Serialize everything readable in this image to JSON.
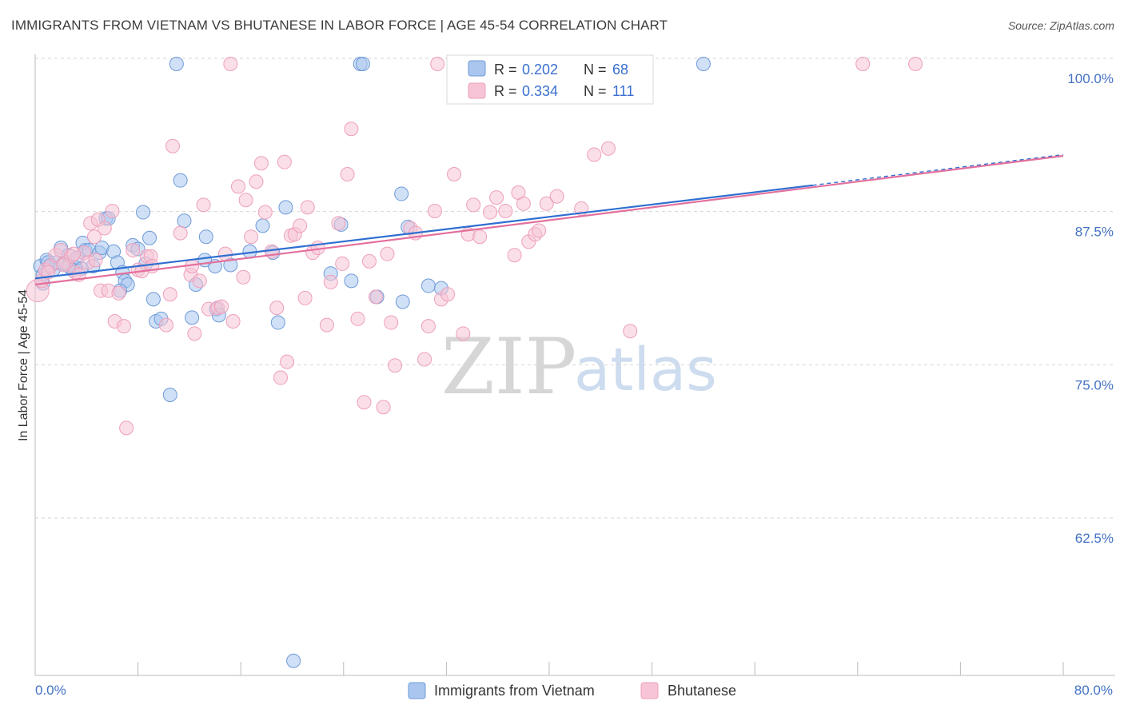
{
  "title": "IMMIGRANTS FROM VIETNAM VS BHUTANESE IN LABOR FORCE | AGE 45-54 CORRELATION CHART",
  "source": "Source: ZipAtlas.com",
  "watermark": {
    "zip": "ZIP",
    "atlas": "atlas"
  },
  "chart_data": {
    "type": "scatter",
    "title": "IMMIGRANTS FROM VIETNAM VS BHUTANESE IN LABOR FORCE | AGE 45-54 CORRELATION CHART",
    "xlabel": "",
    "ylabel": "In Labor Force | Age 45-54",
    "xlim": [
      0,
      80
    ],
    "ylim": [
      50,
      101
    ],
    "x_tick_labels": [
      "0.0%",
      "80.0%"
    ],
    "y_ticks": [
      62.5,
      75.0,
      87.5,
      100.0
    ],
    "y_tick_labels": [
      "62.5%",
      "75.0%",
      "87.5%",
      "100.0%"
    ],
    "grid": true,
    "legend_top": {
      "rows": [
        {
          "r_label": "R = ",
          "r_value": "0.202",
          "n_label": "N = ",
          "n_value": "68"
        },
        {
          "r_label": "R = ",
          "r_value": "0.334",
          "n_label": "N = ",
          "n_value": "111"
        }
      ]
    },
    "series": [
      {
        "name": "Immigrants from Vietnam",
        "color": "#6f9bd8",
        "fill": "#aac6ee",
        "line_color": "#2f6fd0",
        "trend": {
          "x0": 0,
          "y0": 82.5,
          "x1": 60.5,
          "y1": 90.1,
          "dash_x1": 80,
          "dash_y1": 92.6
        },
        "points": [
          [
            0.4,
            83.5
          ],
          [
            0.6,
            82.8
          ],
          [
            0.9,
            84.0
          ],
          [
            1.2,
            83.6
          ],
          [
            1.4,
            83.2
          ],
          [
            1.7,
            83.8
          ],
          [
            2.0,
            85.0
          ],
          [
            2.2,
            83.7
          ],
          [
            2.6,
            84.4
          ],
          [
            2.9,
            83.2
          ],
          [
            3.1,
            83.4
          ],
          [
            3.3,
            84.2
          ],
          [
            3.7,
            85.4
          ],
          [
            3.9,
            84.8
          ],
          [
            4.2,
            84.8
          ],
          [
            4.5,
            83.5
          ],
          [
            5.0,
            84.6
          ],
          [
            5.5,
            87.4
          ],
          [
            5.2,
            85.0
          ],
          [
            6.1,
            84.7
          ],
          [
            6.4,
            83.8
          ],
          [
            6.8,
            83.0
          ],
          [
            7.0,
            82.3
          ],
          [
            7.2,
            82.0
          ],
          [
            7.6,
            85.2
          ],
          [
            8.0,
            84.9
          ],
          [
            8.4,
            87.9
          ],
          [
            8.6,
            83.7
          ],
          [
            8.9,
            85.8
          ],
          [
            9.2,
            80.8
          ],
          [
            9.4,
            79.0
          ],
          [
            9.8,
            79.2
          ],
          [
            10.5,
            73.0
          ],
          [
            11.0,
            100.0
          ],
          [
            11.3,
            90.5
          ],
          [
            11.6,
            87.2
          ],
          [
            12.2,
            79.3
          ],
          [
            12.5,
            82.0
          ],
          [
            13.3,
            85.9
          ],
          [
            14.0,
            83.5
          ],
          [
            14.1,
            80.0
          ],
          [
            14.3,
            79.5
          ],
          [
            15.2,
            83.6
          ],
          [
            16.7,
            84.7
          ],
          [
            17.7,
            86.8
          ],
          [
            18.5,
            84.6
          ],
          [
            18.9,
            78.9
          ],
          [
            19.5,
            88.3
          ],
          [
            20.1,
            51.3
          ],
          [
            23.8,
            86.9
          ],
          [
            23.0,
            82.9
          ],
          [
            24.6,
            82.3
          ],
          [
            25.3,
            100.0
          ],
          [
            25.5,
            100.0
          ],
          [
            26.6,
            81.0
          ],
          [
            28.5,
            89.4
          ],
          [
            28.6,
            80.6
          ],
          [
            29.0,
            86.7
          ],
          [
            30.6,
            81.9
          ],
          [
            31.6,
            81.7
          ],
          [
            3.6,
            83.3
          ],
          [
            1.0,
            83.8
          ],
          [
            2.6,
            83.5
          ],
          [
            5.7,
            87.4
          ],
          [
            6.6,
            81.5
          ],
          [
            52.0,
            100.0
          ],
          [
            13.2,
            84.0
          ],
          [
            0.6,
            82.1
          ]
        ]
      },
      {
        "name": "Bhutanese",
        "color": "#ee9fbb",
        "fill": "#f6c4d6",
        "line_color": "#e3709d",
        "trend": {
          "x0": 0,
          "y0": 82.0,
          "x1": 80,
          "y1": 92.5
        },
        "points": [
          [
            0.2,
            81.5
          ],
          [
            0.5,
            82.3
          ],
          [
            0.8,
            83.2
          ],
          [
            1.2,
            83.5
          ],
          [
            1.6,
            84.4
          ],
          [
            2.0,
            84.8
          ],
          [
            2.4,
            83.8
          ],
          [
            2.8,
            84.3
          ],
          [
            3.1,
            83.0
          ],
          [
            3.4,
            82.8
          ],
          [
            3.8,
            84.6
          ],
          [
            4.1,
            83.8
          ],
          [
            4.3,
            87.0
          ],
          [
            4.6,
            85.9
          ],
          [
            4.9,
            87.3
          ],
          [
            5.1,
            81.5
          ],
          [
            5.4,
            86.6
          ],
          [
            5.7,
            81.5
          ],
          [
            6.0,
            88.0
          ],
          [
            6.2,
            79.0
          ],
          [
            6.5,
            81.3
          ],
          [
            6.9,
            78.6
          ],
          [
            7.1,
            70.3
          ],
          [
            7.6,
            84.8
          ],
          [
            8.0,
            83.2
          ],
          [
            8.3,
            83.1
          ],
          [
            8.7,
            84.3
          ],
          [
            9.0,
            84.3
          ],
          [
            10.2,
            78.7
          ],
          [
            10.5,
            81.2
          ],
          [
            10.7,
            93.3
          ],
          [
            11.3,
            86.2
          ],
          [
            12.1,
            82.8
          ],
          [
            12.4,
            78.0
          ],
          [
            12.8,
            82.3
          ],
          [
            13.1,
            88.5
          ],
          [
            13.5,
            80.0
          ],
          [
            14.2,
            80.1
          ],
          [
            14.5,
            80.2
          ],
          [
            14.8,
            84.5
          ],
          [
            15.4,
            79.0
          ],
          [
            15.8,
            90.0
          ],
          [
            16.2,
            82.6
          ],
          [
            16.4,
            88.9
          ],
          [
            16.8,
            85.9
          ],
          [
            17.2,
            90.4
          ],
          [
            17.6,
            91.9
          ],
          [
            17.9,
            87.9
          ],
          [
            18.4,
            84.7
          ],
          [
            18.8,
            80.1
          ],
          [
            19.1,
            74.4
          ],
          [
            19.4,
            92.0
          ],
          [
            19.6,
            75.7
          ],
          [
            19.9,
            86.0
          ],
          [
            20.2,
            86.1
          ],
          [
            20.6,
            86.8
          ],
          [
            21.0,
            80.9
          ],
          [
            21.2,
            88.3
          ],
          [
            21.6,
            84.6
          ],
          [
            22.0,
            85.0
          ],
          [
            22.7,
            78.7
          ],
          [
            23.0,
            82.2
          ],
          [
            23.6,
            87.0
          ],
          [
            23.9,
            83.7
          ],
          [
            24.3,
            91.0
          ],
          [
            24.6,
            94.7
          ],
          [
            25.1,
            79.2
          ],
          [
            25.6,
            72.4
          ],
          [
            26.0,
            83.9
          ],
          [
            26.5,
            81.0
          ],
          [
            27.1,
            72.0
          ],
          [
            27.4,
            84.5
          ],
          [
            27.7,
            78.9
          ],
          [
            28.0,
            75.4
          ],
          [
            29.2,
            86.6
          ],
          [
            29.6,
            86.2
          ],
          [
            30.3,
            75.9
          ],
          [
            30.6,
            78.6
          ],
          [
            31.1,
            88.0
          ],
          [
            31.6,
            80.8
          ],
          [
            32.1,
            81.2
          ],
          [
            32.6,
            91.0
          ],
          [
            33.3,
            78.0
          ],
          [
            33.7,
            86.1
          ],
          [
            34.1,
            88.5
          ],
          [
            34.6,
            85.9
          ],
          [
            35.4,
            87.9
          ],
          [
            35.9,
            89.1
          ],
          [
            36.6,
            88.0
          ],
          [
            37.3,
            84.4
          ],
          [
            37.6,
            89.5
          ],
          [
            38.0,
            88.6
          ],
          [
            38.4,
            85.5
          ],
          [
            38.9,
            86.1
          ],
          [
            39.2,
            86.4
          ],
          [
            39.8,
            88.6
          ],
          [
            40.6,
            89.2
          ],
          [
            42.5,
            88.2
          ],
          [
            43.5,
            92.6
          ],
          [
            44.6,
            93.1
          ],
          [
            46.3,
            78.2
          ],
          [
            64.4,
            100.0
          ],
          [
            68.5,
            100.0
          ],
          [
            15.2,
            100.0
          ],
          [
            31.3,
            100.0
          ],
          [
            4.7,
            84.0
          ],
          [
            2.2,
            83.6
          ],
          [
            12.2,
            83.5
          ],
          [
            9.1,
            83.5
          ],
          [
            1.0,
            83.0
          ],
          [
            3.0,
            84.5
          ]
        ]
      }
    ],
    "bottom_legend": [
      "Immigrants from Vietnam",
      "Bhutanese"
    ]
  }
}
